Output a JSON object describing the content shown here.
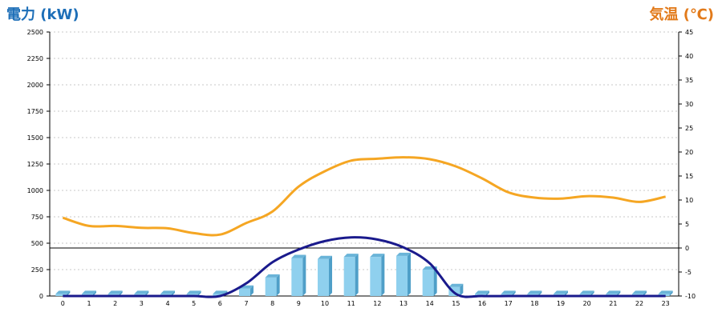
{
  "chart_data": {
    "type": "bar+line",
    "x": [
      "0",
      "1",
      "2",
      "3",
      "4",
      "5",
      "6",
      "7",
      "8",
      "9",
      "10",
      "11",
      "12",
      "13",
      "14",
      "15",
      "16",
      "17",
      "18",
      "19",
      "20",
      "21",
      "22",
      "23"
    ],
    "y_left": {
      "label": "電力 (kW)",
      "ylim": [
        0,
        2500
      ],
      "ticks": [
        "0",
        "250",
        "500",
        "750",
        "1000",
        "1250",
        "1500",
        "1750",
        "2000",
        "2250",
        "2500"
      ]
    },
    "y_right": {
      "label": "気温 (℃)",
      "ylim": [
        -10,
        45
      ],
      "ticks": [
        "-10",
        "-5",
        "0",
        "5",
        "10",
        "15",
        "20",
        "25",
        "30",
        "35",
        "40",
        "45"
      ]
    },
    "reference_line_temp": 0,
    "series": [
      {
        "kind": "bar",
        "axis": "left",
        "values": [
          20,
          20,
          20,
          20,
          20,
          20,
          20,
          70,
          175,
          360,
          350,
          370,
          370,
          380,
          250,
          85,
          20,
          20,
          20,
          20,
          20,
          20,
          20,
          20
        ]
      },
      {
        "kind": "line",
        "axis": "left",
        "color_key": "navy",
        "values": [
          0,
          0,
          0,
          0,
          0,
          0,
          0,
          120,
          320,
          440,
          520,
          555,
          535,
          460,
          310,
          20,
          0,
          0,
          0,
          0,
          0,
          0,
          0,
          0
        ]
      },
      {
        "kind": "line",
        "axis": "right",
        "color_key": "orange",
        "values": [
          6.3,
          4.6,
          4.6,
          4.2,
          4.1,
          3.1,
          2.8,
          5.2,
          7.6,
          12.8,
          16.0,
          18.2,
          18.6,
          18.9,
          18.5,
          17.0,
          14.5,
          11.6,
          10.5,
          10.3,
          10.8,
          10.5,
          9.6,
          10.7
        ]
      }
    ],
    "grid": true
  },
  "colors": {
    "left_label": "#1e6fb8",
    "right_label": "#e27a1a",
    "bar_front": "#8fd0ee",
    "bar_side": "#4f9fc8",
    "bar_top": "#6ab4d8",
    "navy": "#1a1a8c",
    "orange": "#f5a623",
    "grid": "#c8c8c8",
    "axis": "#000000"
  }
}
